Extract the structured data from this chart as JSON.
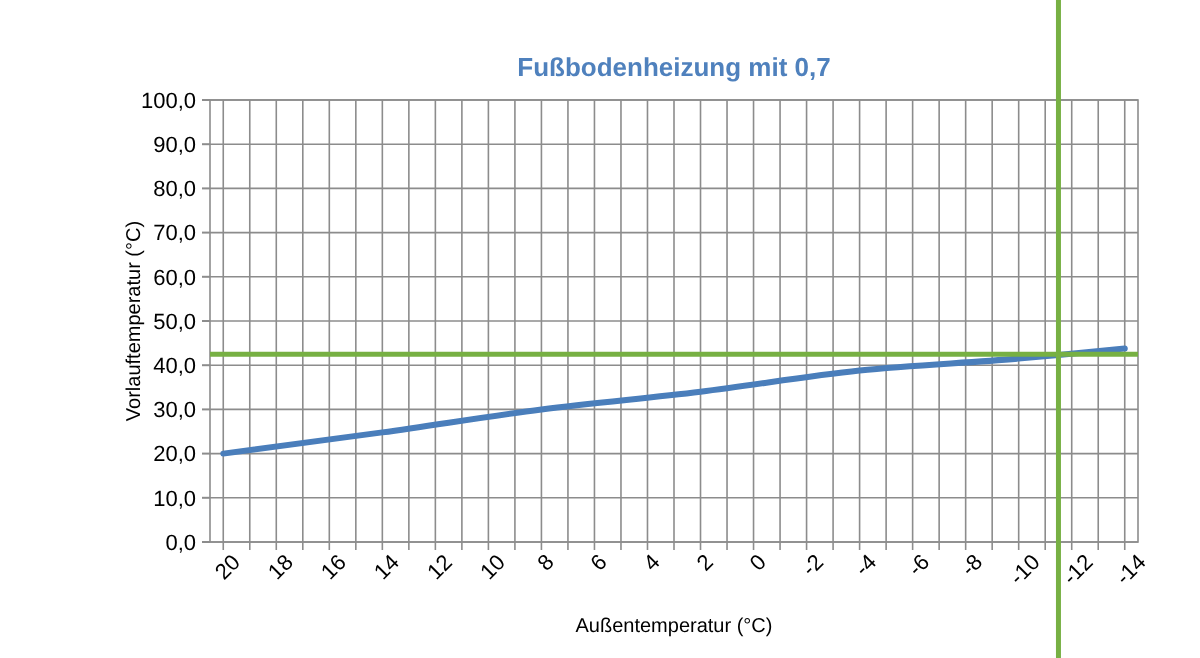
{
  "chart_data": {
    "type": "line",
    "title": "Fußbodenheizung mit 0,7",
    "xlabel": "Außentemperatur (°C)",
    "ylabel": "Vorlauftemperatur (°C)",
    "x": [
      20,
      14,
      8,
      2,
      -4,
      -10,
      -11.5,
      -14
    ],
    "series": [
      {
        "color": "#4a7ebb",
        "values": [
          20,
          24.8,
          30.0,
          34.0,
          38.8,
          41.5,
          42.3,
          43.8
        ]
      }
    ],
    "xlim": [
      20.5,
      -14.5
    ],
    "xticks": [
      20,
      {
        "value": 19,
        "label": null
      },
      18,
      {
        "value": 17,
        "label": null
      },
      16,
      {
        "value": 15,
        "label": null
      },
      14,
      {
        "value": 13,
        "label": null
      },
      12,
      {
        "value": 11,
        "label": null
      },
      10,
      {
        "value": 9,
        "label": null
      },
      8,
      {
        "value": 7,
        "label": null
      },
      6,
      {
        "value": 5,
        "label": null
      },
      4,
      {
        "value": 3,
        "label": null
      },
      2,
      {
        "value": 1,
        "label": null
      },
      0,
      {
        "value": -1,
        "label": null
      },
      -2,
      {
        "value": -3,
        "label": null
      },
      -4,
      {
        "value": -5,
        "label": null
      },
      -6,
      {
        "value": -7,
        "label": null
      },
      -8,
      {
        "value": -9,
        "label": null
      },
      -10,
      {
        "value": -11,
        "label": null
      },
      -12,
      {
        "value": -13,
        "label": null
      },
      -14
    ],
    "ylim": [
      0,
      100
    ],
    "yticks": [
      {
        "value": 0,
        "label": "0,0"
      },
      {
        "value": 10,
        "label": "10,0"
      },
      {
        "value": 20,
        "label": "20,0"
      },
      {
        "value": 30,
        "label": "30,0"
      },
      {
        "value": 40,
        "label": "40,0"
      },
      {
        "value": 50,
        "label": "50,0"
      },
      {
        "value": 60,
        "label": "60,0"
      },
      {
        "value": 70,
        "label": "70,0"
      },
      {
        "value": 80,
        "label": "80,0"
      },
      {
        "value": 90,
        "label": "90,0"
      },
      {
        "value": 100,
        "label": "100,0"
      }
    ],
    "grid": true,
    "ref_lines": [
      {
        "axis": "y",
        "value": 42.5,
        "color": "#77b043"
      },
      {
        "axis": "x",
        "value": -11.5,
        "color": "#77b043"
      }
    ]
  }
}
